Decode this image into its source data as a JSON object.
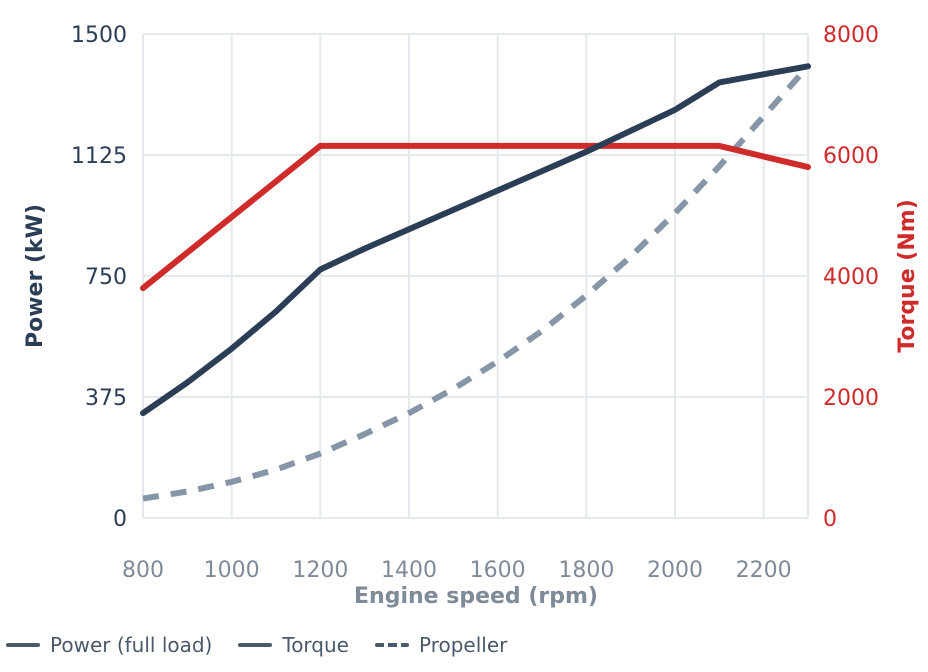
{
  "chart_data": {
    "type": "line",
    "xlabel": "Engine speed (rpm)",
    "ylabel_left": "Power (kW)",
    "ylabel_right": "Torque (Nm)",
    "x_ticks": [
      "800",
      "1000",
      "1200",
      "1400",
      "1600",
      "1800",
      "2000",
      "2200"
    ],
    "y_left_ticks": [
      "0",
      "375",
      "750",
      "1125",
      "1500"
    ],
    "y_right_ticks": [
      "0",
      "2000",
      "4000",
      "6000",
      "8000"
    ],
    "xlim": [
      800,
      2300
    ],
    "ylim_left": [
      0,
      1500
    ],
    "ylim_right": [
      0,
      8000
    ],
    "grid": true,
    "legend_position": "bottom-left",
    "series": [
      {
        "axis": "left",
        "color": "#2c3e55",
        "style": "solid",
        "x": [
          800,
          900,
          1000,
          1100,
          1200,
          1300,
          1400,
          1500,
          1600,
          1700,
          1800,
          1900,
          2000,
          2100,
          2200,
          2300
        ],
        "values": [
          325,
          420,
          525,
          640,
          770,
          835,
          895,
          955,
          1015,
          1075,
          1135,
          1200,
          1265,
          1350,
          1375,
          1400
        ]
      },
      {
        "axis": "right",
        "color": "#cf2b2b",
        "style": "solid",
        "x": [
          800,
          1200,
          2100,
          2300
        ],
        "values": [
          3800,
          6150,
          6150,
          5800
        ]
      },
      {
        "axis": "left",
        "color": "#8696a7",
        "style": "dashed",
        "x": [
          800,
          900,
          1000,
          1100,
          1200,
          1300,
          1400,
          1500,
          1600,
          1700,
          1800,
          1900,
          2000,
          2100,
          2200,
          2300
        ],
        "values": [
          60,
          82,
          112,
          150,
          200,
          260,
          325,
          400,
          485,
          580,
          690,
          810,
          945,
          1090,
          1245,
          1400
        ]
      }
    ]
  },
  "legend": {
    "items": [
      {
        "label": "Power (full load)",
        "style": "solid"
      },
      {
        "label": "Torque",
        "style": "solid"
      },
      {
        "label": "Propeller",
        "style": "dashed"
      }
    ]
  },
  "colors": {
    "left_axis": "#2c3e55",
    "right_axis": "#cf2b2b",
    "x_axis": "#7f8b99",
    "grid": "#e4e9ee"
  }
}
